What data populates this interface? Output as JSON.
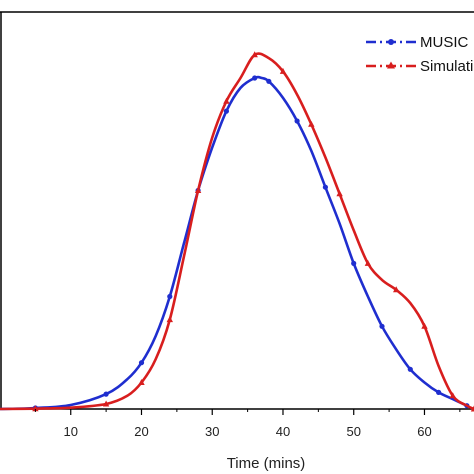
{
  "chart_data": {
    "type": "line",
    "title": "",
    "xlabel": "Time (mins)",
    "ylabel": "",
    "xlim": [
      0,
      67
    ],
    "ylim": [
      0,
      1
    ],
    "xticks": [
      10,
      20,
      30,
      40,
      50,
      60
    ],
    "grid": false,
    "legend_position": "top-right",
    "series": [
      {
        "name": "MUSIC",
        "color": "#1f2ecf",
        "line_style": "dash-dot",
        "marker": "circle",
        "x": [
          0,
          5,
          10,
          15,
          18,
          20,
          22,
          24,
          26,
          28,
          30,
          32,
          34,
          36,
          37,
          38,
          40,
          42,
          44,
          46,
          48,
          50,
          52,
          54,
          56,
          58,
          60,
          62,
          64,
          66
        ],
        "y": [
          0.0,
          0.003,
          0.012,
          0.045,
          0.09,
          0.14,
          0.22,
          0.34,
          0.5,
          0.66,
          0.79,
          0.9,
          0.97,
          1.0,
          1.0,
          0.99,
          0.94,
          0.87,
          0.78,
          0.67,
          0.56,
          0.44,
          0.34,
          0.25,
          0.18,
          0.12,
          0.08,
          0.05,
          0.03,
          0.01
        ]
      },
      {
        "name": "Simulation",
        "color": "#d81e1e",
        "line_style": "dash-dot",
        "marker": "triangle",
        "x": [
          0,
          5,
          10,
          15,
          18,
          20,
          22,
          24,
          26,
          28,
          30,
          32,
          34,
          36,
          38,
          40,
          42,
          44,
          46,
          48,
          50,
          52,
          54,
          56,
          58,
          60,
          62,
          64,
          66,
          67
        ],
        "y": [
          0.0,
          0.001,
          0.004,
          0.015,
          0.04,
          0.08,
          0.15,
          0.27,
          0.46,
          0.66,
          0.82,
          0.93,
          1.0,
          1.07,
          1.06,
          1.02,
          0.95,
          0.86,
          0.76,
          0.65,
          0.54,
          0.44,
          0.39,
          0.36,
          0.32,
          0.25,
          0.13,
          0.04,
          0.01,
          0.0
        ]
      }
    ]
  },
  "legend": {
    "items": [
      {
        "label": "MUSIC"
      },
      {
        "label": "Simulation"
      }
    ]
  }
}
